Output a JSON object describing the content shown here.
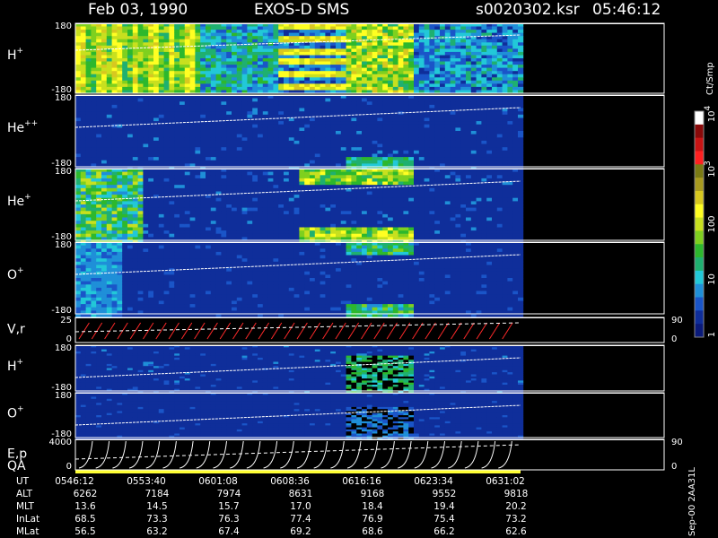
{
  "header": {
    "date": "Feb 03, 1990",
    "instrument": "EXOS-D SMS",
    "file": "s0020302.ksr",
    "time": "05:46:12"
  },
  "chart_data": [
    {
      "type": "heatmap",
      "species": "H",
      "charge": "+",
      "yticks": [
        "180",
        "-180"
      ],
      "ylim": [
        -180,
        180
      ],
      "pattern": "h_main"
    },
    {
      "type": "heatmap",
      "species": "He",
      "charge": "++",
      "yticks": [
        "180",
        "-180"
      ],
      "ylim": [
        -180,
        180
      ],
      "pattern": "he2"
    },
    {
      "type": "heatmap",
      "species": "He",
      "charge": "+",
      "yticks": [
        "180",
        "-180"
      ],
      "ylim": [
        -180,
        180
      ],
      "pattern": "he1"
    },
    {
      "type": "heatmap",
      "species": "O",
      "charge": "+",
      "yticks": [
        "180",
        "-180"
      ],
      "ylim": [
        -180,
        180
      ],
      "pattern": "o_main"
    },
    {
      "type": "line",
      "species": "V,r",
      "charge": "",
      "yticks": [
        "25",
        "0"
      ],
      "ylim": [
        0,
        25
      ],
      "right_ticks": [
        "90",
        "0"
      ],
      "series_color": "#ff2a2a"
    },
    {
      "type": "heatmap",
      "species": "H",
      "charge": "+",
      "yticks": [
        "180",
        "-180"
      ],
      "ylim": [
        -180,
        180
      ],
      "pattern": "h_low"
    },
    {
      "type": "heatmap",
      "species": "O",
      "charge": "+",
      "yticks": [
        "180",
        "-180"
      ],
      "ylim": [
        -180,
        180
      ],
      "pattern": "o_low"
    },
    {
      "type": "line",
      "species": "E,p",
      "charge": "",
      "extra_label": "QA",
      "yticks": [
        "4000",
        "0"
      ],
      "ylim": [
        0,
        4000
      ],
      "right_ticks": [
        "90",
        "0"
      ],
      "series_color": "#ffffff",
      "qa_color": "#ffff33"
    }
  ],
  "colorbar": {
    "unit": "Ct/Smp",
    "ticks": [
      {
        "label": "10",
        "exp": "4",
        "level": 4
      },
      {
        "label": "10",
        "exp": "3",
        "level": 3
      },
      {
        "label": "100",
        "exp": "",
        "level": 2
      },
      {
        "label": "10",
        "exp": "",
        "level": 1
      },
      {
        "label": "1",
        "exp": "",
        "level": 0
      }
    ],
    "colors": [
      "#0a1a7a",
      "#0f2e9a",
      "#1a55c8",
      "#1f8fd8",
      "#22c8d8",
      "#1fb070",
      "#2db82d",
      "#7fd01f",
      "#c8e01f",
      "#ffff22",
      "#d8c81f",
      "#a89a1f",
      "#7a7a14",
      "#ff2020",
      "#c81414",
      "#8a0a0a",
      "#ffffff"
    ]
  },
  "footer": {
    "columns": [
      "0546:12",
      "0553:40",
      "0601:08",
      "0608:36",
      "0616:16",
      "0623:34",
      "0631:02"
    ],
    "rows": [
      {
        "label": "UT",
        "values": [
          "0546:12",
          "0553:40",
          "0601:08",
          "0608:36",
          "0616:16",
          "0623:34",
          "0631:02"
        ]
      },
      {
        "label": "ALT",
        "values": [
          "6262",
          "7184",
          "7974",
          "8631",
          "9168",
          "9552",
          "9818"
        ]
      },
      {
        "label": "MLT",
        "values": [
          "13.6",
          "14.5",
          "15.7",
          "17.0",
          "18.4",
          "19.4",
          "20.2"
        ]
      },
      {
        "label": "InLat",
        "values": [
          "68.5",
          "73.3",
          "76.3",
          "77.4",
          "76.9",
          "75.4",
          "73.2"
        ]
      },
      {
        "label": "MLat",
        "values": [
          "56.5",
          "63.2",
          "67.4",
          "69.2",
          "68.6",
          "66.2",
          "62.6"
        ]
      }
    ],
    "stamp": "Sep-00 2AA31L"
  }
}
